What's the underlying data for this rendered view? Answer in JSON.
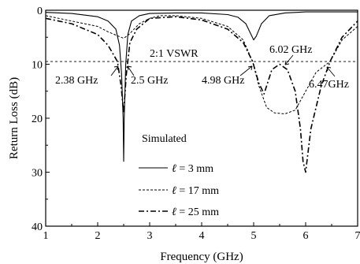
{
  "chart_data": {
    "type": "line",
    "xlabel": "Frequency (GHz)",
    "ylabel": "Return Loss (dB)",
    "xlim": [
      1,
      7
    ],
    "ylim": [
      0,
      40
    ],
    "y_inverted": true,
    "xticks": [
      1,
      2,
      3,
      4,
      5,
      6,
      7
    ],
    "yticks": [
      0,
      10,
      20,
      30,
      40
    ],
    "grid": false,
    "legend_title": "Simulated",
    "legend_position": "lower-center",
    "reference_line": {
      "label": "2:1 VSWR",
      "y": 9.5
    },
    "annotations": [
      {
        "text": "2.38 GHz",
        "x": 2.38
      },
      {
        "text": "2.5 GHz",
        "x": 2.5
      },
      {
        "text": "4.98 GHz",
        "x": 4.98
      },
      {
        "text": "6.02 GHz",
        "x": 6.02
      },
      {
        "text": "6.47GHz",
        "x": 6.47
      }
    ],
    "series": [
      {
        "name_symbol": "ℓ",
        "name_rest": " = 3 mm",
        "style": "solid",
        "x": [
          1.0,
          1.5,
          2.0,
          2.2,
          2.35,
          2.42,
          2.46,
          2.49,
          2.5,
          2.51,
          2.54,
          2.58,
          2.65,
          2.8,
          3.0,
          3.5,
          4.0,
          4.5,
          4.7,
          4.85,
          4.95,
          5.0,
          5.05,
          5.15,
          5.3,
          5.6,
          6.0,
          6.5,
          7.0
        ],
        "y": [
          0.4,
          0.6,
          1.2,
          2.0,
          3.5,
          6.5,
          12.0,
          20.0,
          28.0,
          20.0,
          10.0,
          4.5,
          2.0,
          1.0,
          0.6,
          0.5,
          0.5,
          0.8,
          1.3,
          2.5,
          4.5,
          5.5,
          4.8,
          2.5,
          1.0,
          0.5,
          0.3,
          0.3,
          0.3
        ]
      },
      {
        "name_symbol": "ℓ",
        "name_rest": " = 17 mm",
        "style": "dashed",
        "x": [
          1.0,
          1.5,
          2.0,
          2.2,
          2.4,
          2.5,
          2.6,
          2.8,
          3.0,
          3.2,
          3.5,
          4.0,
          4.5,
          4.8,
          4.98,
          5.1,
          5.25,
          5.4,
          5.6,
          5.8,
          6.0,
          6.2,
          6.47,
          6.7,
          7.0
        ],
        "y": [
          1.0,
          2.0,
          3.0,
          4.0,
          4.8,
          5.2,
          4.5,
          2.5,
          1.5,
          1.0,
          1.0,
          1.5,
          3.0,
          5.5,
          9.5,
          14.0,
          18.0,
          19.0,
          19.2,
          18.5,
          15.0,
          11.5,
          9.5,
          5.5,
          3.0
        ]
      },
      {
        "name_symbol": "ℓ",
        "name_rest": " = 25 mm",
        "style": "dashdot",
        "x": [
          1.0,
          1.5,
          2.0,
          2.2,
          2.38,
          2.45,
          2.5,
          2.55,
          2.62,
          2.75,
          3.0,
          3.5,
          4.0,
          4.5,
          4.8,
          4.98,
          5.1,
          5.2,
          5.35,
          5.5,
          5.65,
          5.8,
          5.9,
          5.95,
          6.0,
          6.1,
          6.3,
          6.47,
          6.7,
          7.0
        ],
        "y": [
          1.5,
          2.5,
          4.5,
          6.5,
          9.5,
          14.0,
          19.0,
          12.0,
          6.0,
          3.5,
          1.5,
          1.2,
          1.8,
          3.5,
          6.0,
          9.5,
          13.5,
          15.5,
          11.0,
          10.0,
          11.0,
          15.0,
          22.0,
          28.0,
          30.0,
          22.0,
          14.0,
          9.5,
          5.0,
          2.0
        ]
      }
    ]
  }
}
